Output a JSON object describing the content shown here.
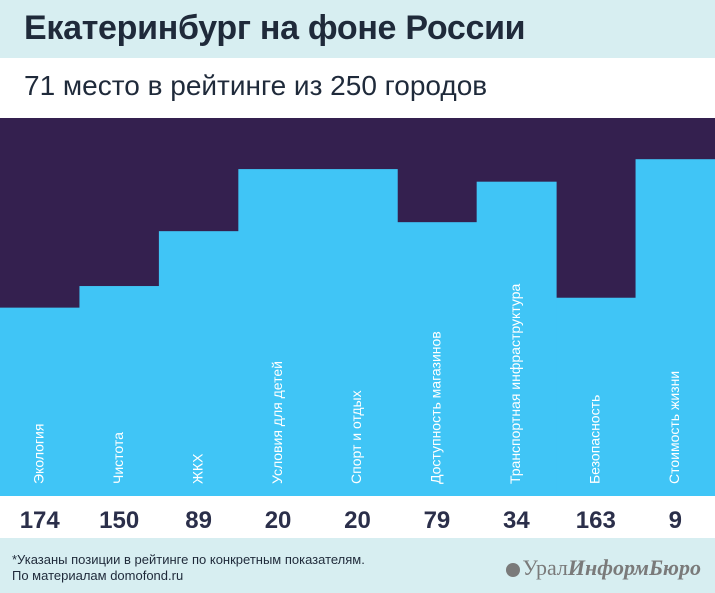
{
  "header": {
    "title": "Екатеринбург на фоне России"
  },
  "subheader": {
    "subtitle": "71 место в рейтинге из 250 городов"
  },
  "colors": {
    "bar": "#40c5f6",
    "background": "#34204f",
    "label": "#ffffff",
    "header_bg": "#d7eef1"
  },
  "chart_data": {
    "type": "bar",
    "categories": [
      "Экология",
      "Чистота",
      "ЖКХ",
      "Условия для детей",
      "Спорт и отдых",
      "Доступность магазинов",
      "Транспортная инфраструктура",
      "Безопасность",
      "Стоимость жизни"
    ],
    "values": [
      174,
      150,
      89,
      20,
      20,
      79,
      34,
      163,
      9
    ],
    "note": "rank — lower is better (taller bar)",
    "rank_range": [
      1,
      250
    ]
  },
  "footer": {
    "note_line1": "*Указаны позиции в рейтинге по конкретным показателям.",
    "note_line2": "По материалам domofond.ru",
    "logo_part1": "Урал",
    "logo_part2": "ИнформБюро"
  }
}
